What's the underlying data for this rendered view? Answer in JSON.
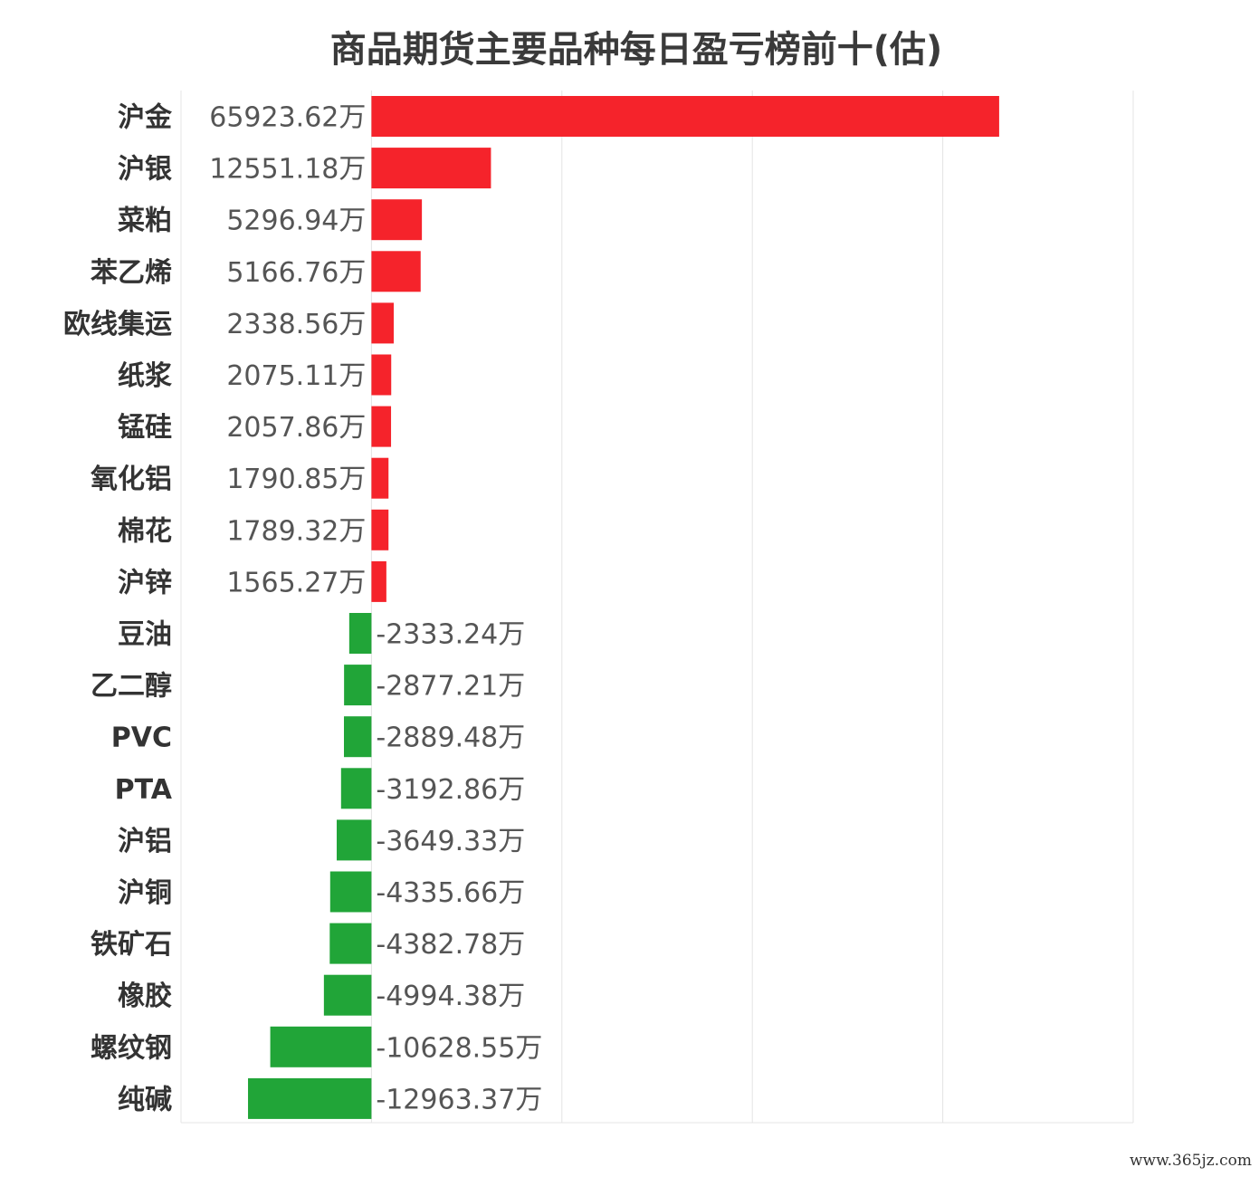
{
  "chart_data": {
    "type": "bar",
    "orientation": "horizontal",
    "title": "商品期货主要品种每日盈亏榜前十(估)",
    "unit": "万",
    "categories": [
      "沪金",
      "沪银",
      "菜粕",
      "苯乙烯",
      "欧线集运",
      "纸浆",
      "锰硅",
      "氧化铝",
      "棉花",
      "沪锌",
      "豆油",
      "乙二醇",
      "PVC",
      "PTA",
      "沪铝",
      "沪铜",
      "铁矿石",
      "橡胶",
      "螺纹钢",
      "纯碱"
    ],
    "values": [
      65923.62,
      12551.18,
      5296.94,
      5166.76,
      2338.56,
      2075.11,
      2057.86,
      1790.85,
      1789.32,
      1565.27,
      -2333.24,
      -2877.21,
      -2889.48,
      -3192.86,
      -3649.33,
      -4335.66,
      -4382.78,
      -4994.38,
      -10628.55,
      -12963.37
    ],
    "value_labels": [
      "65923.62万",
      "12551.18万",
      "5296.94万",
      "5166.76万",
      "2338.56万",
      "2075.11万",
      "2057.86万",
      "1790.85万",
      "1789.32万",
      "1565.27万",
      "-2333.24万",
      "-2877.21万",
      "-2889.48万",
      "-3192.86万",
      "-3649.33万",
      "-4335.66万",
      "-4382.78万",
      "-4994.38万",
      "-10628.55万",
      "-12963.37万"
    ],
    "xlim": [
      -20000,
      80000
    ],
    "grid": true,
    "legend": "none",
    "positive_color": "#f5232b",
    "negative_color": "#21a538",
    "grid_color": "#e4e4e4"
  },
  "watermark": "www.365jz.com"
}
